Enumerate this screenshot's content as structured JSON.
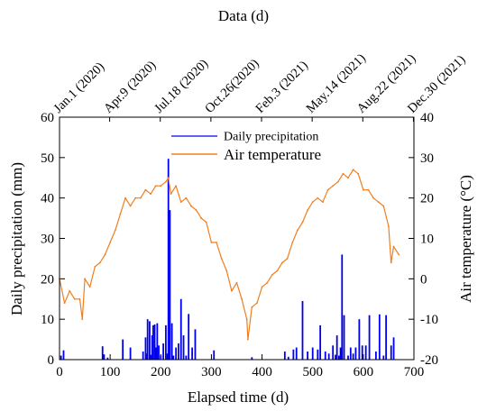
{
  "chart_data": {
    "type": "line",
    "top_axis": {
      "label": "Data (d)",
      "ticks": [
        {
          "day": 0,
          "label": "Jan.1 (2020)"
        },
        {
          "day": 99,
          "label": "Apr.9 (2020)"
        },
        {
          "day": 199,
          "label": "Jul.18 (2020)"
        },
        {
          "day": 299,
          "label": "Oct.26(2020)"
        },
        {
          "day": 399,
          "label": "Feb.3 (2021)"
        },
        {
          "day": 499,
          "label": "May.14 (2021)"
        },
        {
          "day": 599,
          "label": "Aug.22 (2021)"
        },
        {
          "day": 699,
          "label": "Dec.30 (2021)"
        }
      ]
    },
    "xlabel": "Elapsed time (d)",
    "xlim": [
      0,
      700
    ],
    "xticks": [
      0,
      100,
      200,
      300,
      400,
      500,
      600,
      700
    ],
    "ylabel_left": "Daily precipitation (mm)",
    "ylim_left": [
      0,
      60
    ],
    "yticks_left": [
      0,
      10,
      20,
      30,
      40,
      50,
      60
    ],
    "ylabel_right": "Air temperature (°C)",
    "ylim_right": [
      -20,
      40
    ],
    "yticks_right": [
      -20,
      -10,
      0,
      10,
      20,
      30,
      40
    ],
    "legend_position": "top-center",
    "series": [
      {
        "name": "Daily precipitation",
        "type": "bar",
        "axis": "left",
        "color": "#0000ee",
        "x": [
          3,
          8,
          85,
          88,
          95,
          125,
          140,
          165,
          170,
          172,
          174,
          178,
          180,
          183,
          185,
          188,
          190,
          193,
          196,
          200,
          205,
          210,
          213,
          215,
          218,
          222,
          225,
          230,
          235,
          240,
          245,
          250,
          255,
          262,
          268,
          305,
          380,
          445,
          452,
          462,
          468,
          480,
          490,
          500,
          510,
          515,
          525,
          532,
          540,
          545,
          548,
          552,
          555,
          558,
          562,
          570,
          575,
          580,
          585,
          592,
          598,
          605,
          612,
          625,
          632,
          640,
          645,
          655,
          660
        ],
        "values": [
          1.0,
          2.3,
          3.3,
          1.3,
          0.5,
          5.0,
          3.0,
          2.0,
          5.5,
          1.5,
          10.0,
          9.5,
          1.2,
          6.0,
          8.5,
          8.7,
          3.0,
          9.0,
          3.5,
          1.0,
          4.0,
          8.5,
          1.5,
          49.7,
          37.0,
          9.0,
          1.0,
          3.0,
          4.0,
          15.0,
          6.0,
          1.0,
          11.3,
          3.0,
          7.5,
          2.3,
          0.6,
          2.0,
          0.7,
          2.5,
          3.0,
          14.5,
          2.0,
          3.0,
          2.5,
          8.5,
          2.0,
          1.5,
          3.5,
          1.2,
          6.0,
          1.0,
          3.0,
          26.0,
          11.0,
          1.0,
          3.0,
          1.5,
          3.0,
          10.0,
          3.5,
          3.5,
          11.0,
          2.0,
          11.2,
          1.0,
          11.0,
          3.5,
          5.5
        ]
      },
      {
        "name": "Air temperature",
        "type": "line",
        "axis": "right",
        "color": "#f07f1f",
        "x": [
          0,
          10,
          20,
          30,
          40,
          45,
          50,
          60,
          70,
          80,
          90,
          100,
          110,
          120,
          130,
          140,
          150,
          160,
          170,
          180,
          190,
          200,
          210,
          215,
          220,
          230,
          240,
          250,
          260,
          270,
          280,
          290,
          300,
          310,
          320,
          330,
          340,
          350,
          360,
          370,
          372,
          380,
          390,
          400,
          410,
          420,
          430,
          440,
          450,
          460,
          470,
          480,
          490,
          500,
          510,
          520,
          530,
          540,
          550,
          560,
          570,
          580,
          590,
          600,
          610,
          620,
          630,
          640,
          650,
          655,
          660,
          670
        ],
        "values": [
          0,
          -6,
          -3,
          -5,
          -5,
          -10,
          0,
          -2,
          3,
          4,
          6,
          9,
          12,
          16,
          20,
          18,
          20,
          20,
          22,
          21,
          23,
          23,
          24,
          25,
          21,
          23,
          19,
          20,
          18,
          17,
          15,
          14,
          9,
          9,
          5,
          2,
          -3,
          -1,
          -5,
          -10,
          -15,
          -7,
          -6,
          -2,
          -1,
          1,
          2,
          4,
          5,
          9,
          12,
          14,
          17,
          19,
          20,
          19,
          22,
          23,
          24,
          26,
          25,
          27,
          26,
          22,
          22,
          20,
          19,
          18,
          13,
          4,
          8,
          6
        ]
      }
    ]
  }
}
